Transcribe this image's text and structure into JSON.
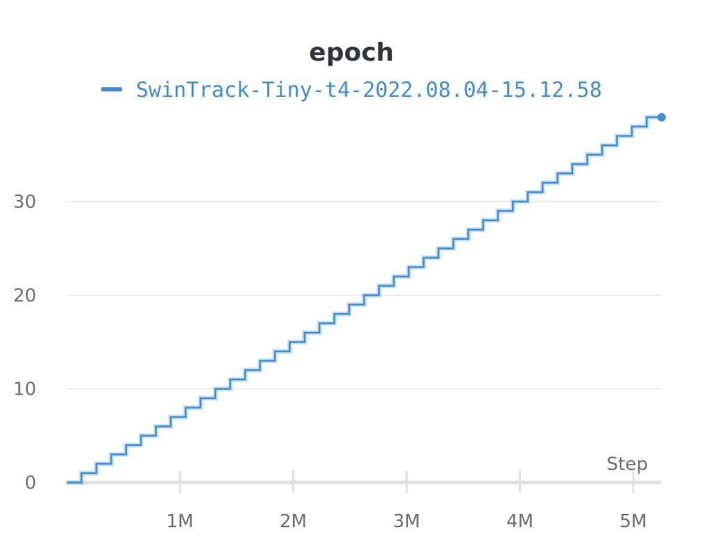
{
  "chart_data": {
    "type": "line",
    "title": "epoch",
    "xlabel": "Step",
    "ylabel": "",
    "x_ticks": [
      {
        "value": 1000000,
        "label": "1M"
      },
      {
        "value": 2000000,
        "label": "2M"
      },
      {
        "value": 3000000,
        "label": "3M"
      },
      {
        "value": 4000000,
        "label": "4M"
      },
      {
        "value": 5000000,
        "label": "5M"
      }
    ],
    "y_ticks": [
      {
        "value": 0,
        "label": "0"
      },
      {
        "value": 10,
        "label": "10"
      },
      {
        "value": 20,
        "label": "20"
      },
      {
        "value": 30,
        "label": "30"
      }
    ],
    "xlim": [
      0,
      5250000
    ],
    "ylim": [
      0,
      39
    ],
    "grid": true,
    "legend_position": "top-center",
    "series": [
      {
        "name": "SwinTrack-Tiny-t4-2022.08.04-15.12.58",
        "color": "#3f8ed8",
        "line_style": "step",
        "epochs_per_step_interval": 1,
        "x": [
          0,
          131250,
          262500,
          393750,
          525000,
          656250,
          787500,
          918750,
          1050000,
          1181250,
          1312500,
          1443750,
          1575000,
          1706250,
          1837500,
          1968750,
          2100000,
          2231250,
          2362500,
          2493750,
          2625000,
          2756250,
          2887500,
          3018750,
          3150000,
          3281250,
          3412500,
          3543750,
          3675000,
          3806250,
          3937500,
          4068750,
          4200000,
          4331250,
          4462500,
          4593750,
          4725000,
          4856250,
          4987500,
          5118750,
          5250000
        ],
        "y": [
          0,
          1,
          2,
          3,
          4,
          5,
          6,
          7,
          8,
          9,
          10,
          11,
          12,
          13,
          14,
          15,
          16,
          17,
          18,
          19,
          20,
          21,
          22,
          23,
          24,
          25,
          26,
          27,
          28,
          29,
          30,
          31,
          32,
          33,
          34,
          35,
          36,
          37,
          38,
          39,
          39
        ]
      }
    ]
  }
}
